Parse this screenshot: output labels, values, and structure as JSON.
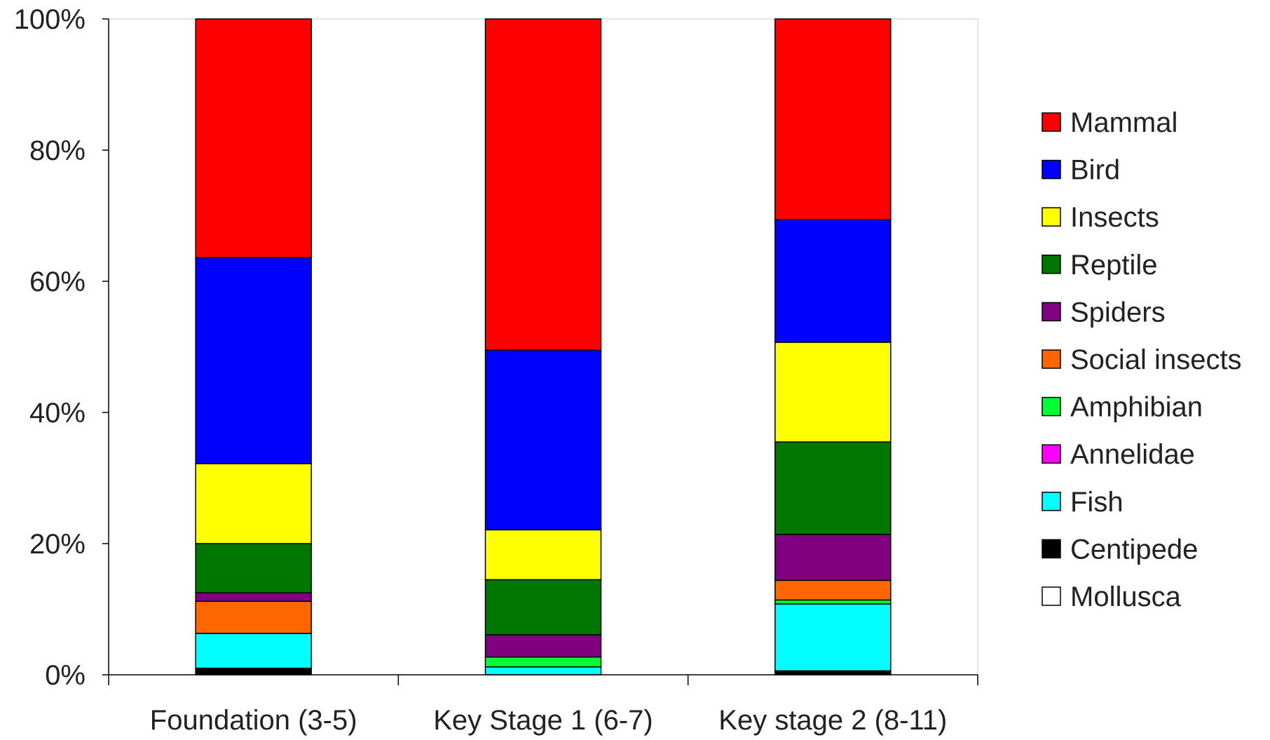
{
  "chart_data": {
    "type": "bar",
    "stacked": true,
    "percent_stacked": true,
    "title": "",
    "xlabel": "",
    "ylabel": "",
    "ylim": [
      0,
      100
    ],
    "y_ticks": [
      "0%",
      "20%",
      "40%",
      "60%",
      "80%",
      "100%"
    ],
    "y_tick_values": [
      0,
      20,
      40,
      60,
      80,
      100
    ],
    "grid": false,
    "legend_position": "right",
    "categories": [
      "Foundation (3-5)",
      "Key Stage 1 (6-7)",
      "Key stage 2 (8-11)"
    ],
    "series": [
      {
        "name": "Centipede",
        "color": "#000000",
        "values": [
          1.0,
          0.0,
          0.6
        ]
      },
      {
        "name": "Mollusca",
        "color": "#ffffff",
        "values": [
          0.0,
          0.0,
          0.0
        ]
      },
      {
        "name": "Fish",
        "color": "#00ffff",
        "values": [
          5.3,
          1.2,
          10.2
        ]
      },
      {
        "name": "Annelidae",
        "color": "#ff00ff",
        "values": [
          0.0,
          0.0,
          0.0
        ]
      },
      {
        "name": "Amphibian",
        "color": "#00ff33",
        "values": [
          0.0,
          1.5,
          0.6
        ]
      },
      {
        "name": "Social insects",
        "color": "#ff6600",
        "values": [
          4.9,
          0.0,
          3.0
        ]
      },
      {
        "name": "Spiders",
        "color": "#800080",
        "values": [
          1.3,
          3.4,
          7.0
        ]
      },
      {
        "name": "Reptile",
        "color": "#007700",
        "values": [
          7.5,
          8.4,
          14.1
        ]
      },
      {
        "name": "Insects",
        "color": "#ffff00",
        "values": [
          12.2,
          7.6,
          15.2
        ]
      },
      {
        "name": "Bird",
        "color": "#0000ff",
        "values": [
          31.4,
          27.4,
          18.7
        ]
      },
      {
        "name": "Mammal",
        "color": "#ff0000",
        "values": [
          36.4,
          50.5,
          30.6
        ]
      }
    ],
    "legend_order": [
      "Mammal",
      "Bird",
      "Insects",
      "Reptile",
      "Spiders",
      "Social insects",
      "Amphibian",
      "Annelidae",
      "Fish",
      "Centipede",
      "Mollusca"
    ]
  }
}
